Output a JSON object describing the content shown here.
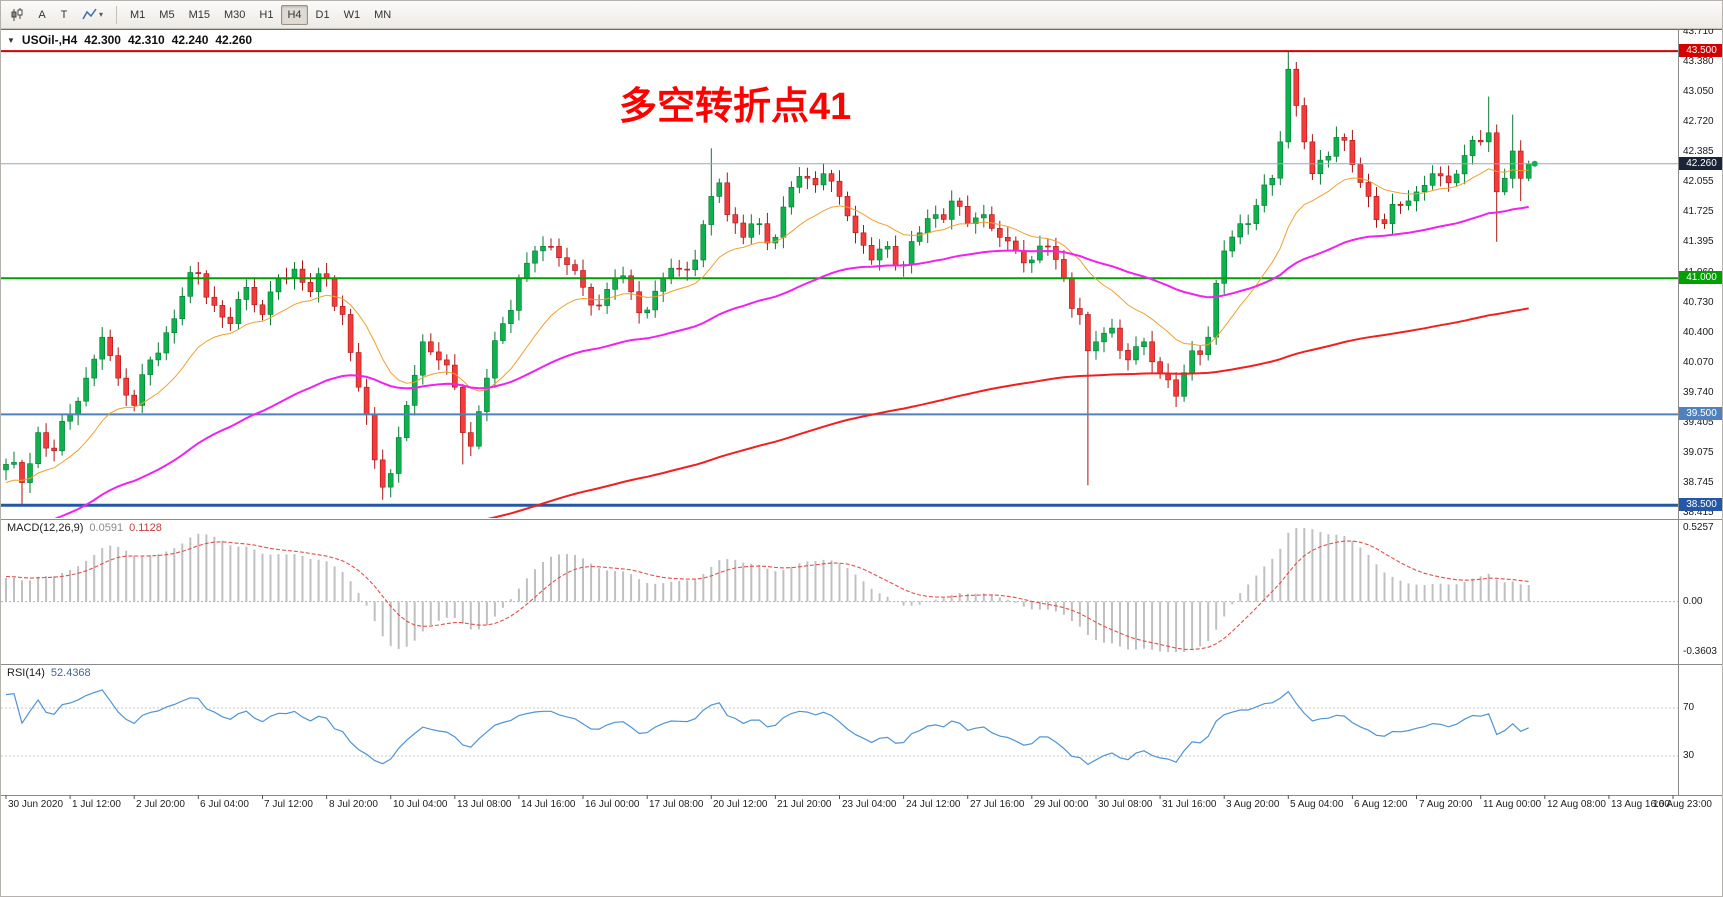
{
  "toolbar": {
    "a_label": "A",
    "t_label": "T",
    "caret_glyph": "▾",
    "timeframes": [
      {
        "label": "M1"
      },
      {
        "label": "M5"
      },
      {
        "label": "M15"
      },
      {
        "label": "M30"
      },
      {
        "label": "H1"
      },
      {
        "label": "H4",
        "active": true
      },
      {
        "label": "D1"
      },
      {
        "label": "W1"
      },
      {
        "label": "MN"
      }
    ]
  },
  "chart": {
    "collapse_glyph": "▼",
    "symbol_period": "USOil-,H4",
    "open": "42.300",
    "high": "42.310",
    "low": "42.240",
    "close": "42.260"
  },
  "chart_data": {
    "type": "candlestick",
    "symbol": "USOil-",
    "timeframe": "H4",
    "quote_ohlc": {
      "open": 42.3,
      "high": 42.31,
      "low": 42.24,
      "close": 42.26
    },
    "annotation": {
      "text": "多空转折点41",
      "color": "#ff0000"
    },
    "bars": 191,
    "label_every_bars": 8,
    "time_labels": [
      "30 Jun 2020",
      "1 Jul 12:00",
      "2 Jul 20:00",
      "6 Jul 04:00",
      "7 Jul 12:00",
      "8 Jul 20:00",
      "10 Jul 04:00",
      "13 Jul 08:00",
      "14 Jul 16:00",
      "16 Jul 00:00",
      "17 Jul 08:00",
      "20 Jul 12:00",
      "21 Jul 20:00",
      "23 Jul 04:00",
      "24 Jul 12:00",
      "27 Jul 16:00",
      "29 Jul 00:00",
      "30 Jul 08:00",
      "31 Jul 16:00",
      "3 Aug 20:00",
      "5 Aug 04:00",
      "6 Aug 12:00",
      "7 Aug 20:00",
      "11 Aug 00:00",
      "12 Aug 08:00",
      "13 Aug 16:00",
      "16 Aug 23:00"
    ],
    "price_range": [
      38.415,
      43.71
    ],
    "price_axis_ticks": [
      "43.710",
      "43.380",
      "43.050",
      "42.720",
      "42.385",
      "42.055",
      "41.725",
      "41.395",
      "41.060",
      "40.730",
      "40.400",
      "40.070",
      "39.740",
      "39.405",
      "39.075",
      "38.745",
      "38.415"
    ],
    "levels": [
      {
        "value": 43.5,
        "text": "43.500",
        "line": "#d40000",
        "width": 2
      },
      {
        "value": 42.26,
        "text": "42.260",
        "line": "#9aa7b8",
        "width": 1,
        "badge": "#1b2437",
        "current": true
      },
      {
        "value": 41.0,
        "text": "41.000",
        "line": "#00a000",
        "width": 2
      },
      {
        "value": 39.5,
        "text": "39.500",
        "line": "#4f81bd",
        "width": 2
      },
      {
        "value": 38.5,
        "text": "38.500",
        "line": "#2458a6",
        "width": 3
      }
    ],
    "colors": {
      "bull": "#0fb04e",
      "bull_edge": "#067a33",
      "bear": "#f23b3b",
      "bear_edge": "#a81414"
    },
    "close_anchors": [
      [
        0,
        38.95
      ],
      [
        2,
        38.75
      ],
      [
        4,
        39.3
      ],
      [
        6,
        39.1
      ],
      [
        8,
        39.5
      ],
      [
        10,
        39.9
      ],
      [
        12,
        40.35
      ],
      [
        14,
        39.9
      ],
      [
        16,
        39.6
      ],
      [
        18,
        40.1
      ],
      [
        20,
        40.4
      ],
      [
        22,
        40.8
      ],
      [
        24,
        41.05
      ],
      [
        26,
        40.7
      ],
      [
        28,
        40.5
      ],
      [
        30,
        40.9
      ],
      [
        32,
        40.6
      ],
      [
        34,
        41.0
      ],
      [
        36,
        41.1
      ],
      [
        38,
        40.85
      ],
      [
        40,
        41.0
      ],
      [
        42,
        40.6
      ],
      [
        44,
        39.8
      ],
      [
        46,
        39.0
      ],
      [
        47,
        38.7
      ],
      [
        48,
        38.85
      ],
      [
        50,
        39.6
      ],
      [
        52,
        40.3
      ],
      [
        54,
        40.1
      ],
      [
        56,
        39.8
      ],
      [
        57,
        39.3
      ],
      [
        58,
        39.15
      ],
      [
        60,
        39.9
      ],
      [
        62,
        40.5
      ],
      [
        64,
        41.0
      ],
      [
        66,
        41.3
      ],
      [
        68,
        41.35
      ],
      [
        70,
        41.15
      ],
      [
        72,
        40.9
      ],
      [
        74,
        40.7
      ],
      [
        76,
        41.0
      ],
      [
        78,
        40.85
      ],
      [
        80,
        40.65
      ],
      [
        82,
        41.0
      ],
      [
        84,
        41.1
      ],
      [
        86,
        41.2
      ],
      [
        88,
        41.9
      ],
      [
        89,
        42.05
      ],
      [
        90,
        41.7
      ],
      [
        92,
        41.45
      ],
      [
        94,
        41.6
      ],
      [
        96,
        41.45
      ],
      [
        98,
        42.0
      ],
      [
        100,
        42.1
      ],
      [
        102,
        42.15
      ],
      [
        104,
        41.9
      ],
      [
        106,
        41.5
      ],
      [
        108,
        41.2
      ],
      [
        110,
        41.35
      ],
      [
        112,
        41.15
      ],
      [
        114,
        41.5
      ],
      [
        116,
        41.7
      ],
      [
        118,
        41.85
      ],
      [
        120,
        41.6
      ],
      [
        122,
        41.7
      ],
      [
        124,
        41.45
      ],
      [
        126,
        41.3
      ],
      [
        128,
        41.2
      ],
      [
        130,
        41.35
      ],
      [
        132,
        41.0
      ],
      [
        134,
        40.6
      ],
      [
        135,
        40.2
      ],
      [
        136,
        40.3
      ],
      [
        138,
        40.45
      ],
      [
        140,
        40.1
      ],
      [
        142,
        40.3
      ],
      [
        144,
        39.95
      ],
      [
        146,
        39.7
      ],
      [
        148,
        40.2
      ],
      [
        150,
        40.35
      ],
      [
        152,
        41.3
      ],
      [
        154,
        41.6
      ],
      [
        156,
        41.8
      ],
      [
        158,
        42.1
      ],
      [
        159,
        42.5
      ],
      [
        160,
        43.3
      ],
      [
        161,
        42.9
      ],
      [
        162,
        42.5
      ],
      [
        163,
        42.15
      ],
      [
        164,
        42.3
      ],
      [
        166,
        42.55
      ],
      [
        168,
        42.25
      ],
      [
        170,
        41.9
      ],
      [
        172,
        41.6
      ],
      [
        174,
        41.8
      ],
      [
        176,
        41.95
      ],
      [
        178,
        42.15
      ],
      [
        180,
        42.05
      ],
      [
        182,
        42.35
      ],
      [
        184,
        42.5
      ],
      [
        185,
        42.6
      ],
      [
        186,
        41.95
      ],
      [
        187,
        42.1
      ],
      [
        188,
        42.4
      ],
      [
        189,
        42.1
      ],
      [
        190,
        42.26
      ]
    ],
    "wick_overrides": [
      {
        "i": 2,
        "low": 38.5
      },
      {
        "i": 47,
        "low": 38.56
      },
      {
        "i": 57,
        "low": 38.95
      },
      {
        "i": 88,
        "high": 42.43
      },
      {
        "i": 135,
        "low": 38.72
      },
      {
        "i": 160,
        "high": 43.5
      },
      {
        "i": 161,
        "high": 43.38
      },
      {
        "i": 185,
        "high": 43.0
      },
      {
        "i": 186,
        "low": 41.4
      },
      {
        "i": 188,
        "high": 42.8
      },
      {
        "i": 189,
        "low": 41.85
      }
    ],
    "prehistory": {
      "bars": 150,
      "start": 35.0
    },
    "moving_averages": [
      {
        "name": "fast-ma",
        "period": 16,
        "color": "#f0a030",
        "width": 1
      },
      {
        "name": "mid-ma",
        "period": 60,
        "color": "#f022f0",
        "width": 2
      },
      {
        "name": "slow-ma",
        "period": 200,
        "color": "#f02020",
        "width": 2
      }
    ],
    "macd": {
      "label": "MACD(12,26,9)",
      "fast": 12,
      "slow": 26,
      "signal": 9,
      "value_str": "0.0591",
      "signal_str": "0.1128",
      "scale_labels": {
        "max": "0.5257",
        "zero": "0.00",
        "min": "-0.3603"
      },
      "hist_color": "#c0c0c0",
      "signal_color": "#e05050"
    },
    "rsi": {
      "label": "RSI(14)",
      "period": 14,
      "value_str": "52.4368",
      "levels": [
        70,
        30
      ],
      "color": "#4f94d4",
      "level_color": "#c5c5c5"
    }
  }
}
